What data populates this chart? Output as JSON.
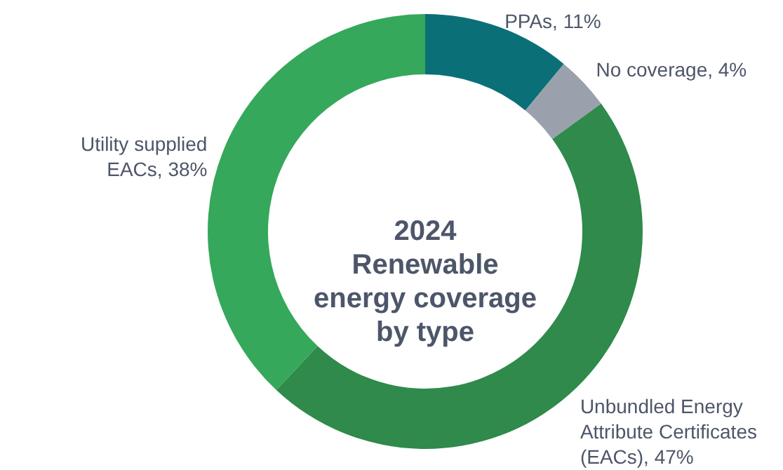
{
  "chart_data": {
    "type": "donut",
    "title": "2024\nRenewable\nenergy coverage\nby type",
    "categories": [
      "PPAs",
      "No coverage",
      "Unbundled Energy Attribute Certificates (EACs)",
      "Utility supplied EACs"
    ],
    "values": [
      11,
      4,
      47,
      38
    ],
    "colors": [
      "#0b6f78",
      "#9aa1ad",
      "#2f8a4b",
      "#35a85b"
    ],
    "value_labels": [
      "11%",
      "4%",
      "47%",
      "38%"
    ]
  }
}
